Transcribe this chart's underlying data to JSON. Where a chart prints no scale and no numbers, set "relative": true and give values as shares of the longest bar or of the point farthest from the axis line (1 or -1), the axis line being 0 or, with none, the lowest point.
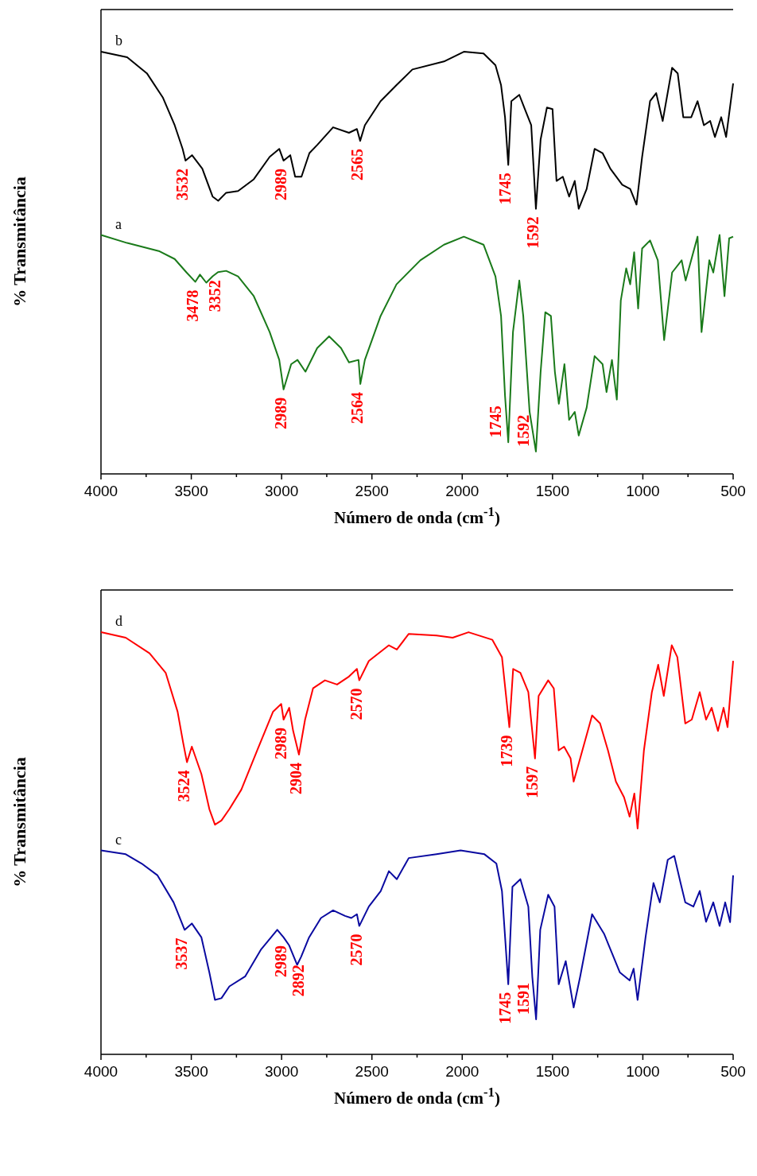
{
  "chart_data": [
    {
      "type": "line",
      "relative": true,
      "xlabel": "Número de onda (cm$^{-1}$)",
      "ylabel": "% Transmitância",
      "xlim": [
        4000,
        500
      ],
      "xticks": [
        4000,
        {
          "value": 3750,
          "label": null
        },
        3500,
        {
          "value": 3250,
          "label": null
        },
        3000,
        {
          "value": 2750,
          "label": null
        },
        2500,
        {
          "value": 2250,
          "label": null
        },
        2000,
        {
          "value": 1750,
          "label": null
        },
        1500,
        {
          "value": 1250,
          "label": null
        },
        1000,
        {
          "value": 750,
          "label": null
        },
        500
      ],
      "grid": false,
      "series": [
        {
          "name": "b",
          "color": "#000000",
          "x": [
            4000,
            3855,
            3746,
            3658,
            3592,
            3548,
            3532,
            3496,
            3439,
            3382,
            3351,
            3307,
            3241,
            3154,
            3066,
            3013,
            2989,
            2952,
            2925,
            2890,
            2846,
            2803,
            2715,
            2627,
            2583,
            2565,
            2539,
            2452,
            2364,
            2276,
            2101,
            1991,
            1882,
            1816,
            1785,
            1763,
            1745,
            1728,
            1684,
            1653,
            1618,
            1592,
            1566,
            1531,
            1500,
            1478,
            1443,
            1408,
            1377,
            1355,
            1311,
            1267,
            1223,
            1180,
            1114,
            1070,
            1035,
            1004,
            960,
            926,
            890,
            838,
            807,
            776,
            732,
            697,
            662,
            627,
            601,
            566,
            539,
            500
          ],
          "values": [
            1.0,
            0.987,
            0.949,
            0.892,
            0.826,
            0.77,
            0.742,
            0.755,
            0.723,
            0.657,
            0.647,
            0.666,
            0.67,
            0.698,
            0.751,
            0.77,
            0.742,
            0.755,
            0.704,
            0.704,
            0.76,
            0.779,
            0.821,
            0.808,
            0.817,
            0.789,
            0.826,
            0.883,
            0.921,
            0.958,
            0.977,
            1.0,
            0.996,
            0.968,
            0.921,
            0.845,
            0.732,
            0.883,
            0.898,
            0.864,
            0.826,
            0.628,
            0.792,
            0.868,
            0.864,
            0.694,
            0.704,
            0.657,
            0.694,
            0.628,
            0.675,
            0.77,
            0.76,
            0.723,
            0.685,
            0.675,
            0.638,
            0.751,
            0.883,
            0.902,
            0.836,
            0.962,
            0.949,
            0.845,
            0.845,
            0.883,
            0.826,
            0.836,
            0.798,
            0.845,
            0.798,
            0.925
          ]
        },
        {
          "name": "a",
          "color": "#1a7a1a",
          "x": [
            4000,
            3855,
            3680,
            3592,
            3526,
            3478,
            3452,
            3417,
            3382,
            3352,
            3307,
            3241,
            3154,
            3066,
            3013,
            2989,
            2947,
            2912,
            2868,
            2803,
            2737,
            2671,
            2627,
            2574,
            2564,
            2539,
            2452,
            2364,
            2232,
            2101,
            1991,
            1882,
            1816,
            1785,
            1763,
            1745,
            1719,
            1684,
            1662,
            1627,
            1592,
            1566,
            1540,
            1509,
            1487,
            1465,
            1434,
            1408,
            1377,
            1355,
            1311,
            1267,
            1223,
            1201,
            1171,
            1144,
            1122,
            1092,
            1070,
            1048,
            1026,
            1004,
            960,
            917,
            882,
            838,
            785,
            763,
            697,
            675,
            632,
            610,
            575,
            548,
            522,
            500
          ],
          "values": [
            0.566,
            0.547,
            0.528,
            0.509,
            0.477,
            0.455,
            0.472,
            0.453,
            0.468,
            0.478,
            0.481,
            0.468,
            0.421,
            0.336,
            0.27,
            0.2,
            0.26,
            0.27,
            0.242,
            0.298,
            0.326,
            0.298,
            0.264,
            0.27,
            0.213,
            0.27,
            0.374,
            0.449,
            0.506,
            0.543,
            0.562,
            0.543,
            0.468,
            0.374,
            0.185,
            0.075,
            0.336,
            0.458,
            0.374,
            0.147,
            0.053,
            0.241,
            0.383,
            0.374,
            0.242,
            0.166,
            0.26,
            0.128,
            0.147,
            0.091,
            0.157,
            0.279,
            0.26,
            0.194,
            0.27,
            0.176,
            0.411,
            0.487,
            0.449,
            0.525,
            0.392,
            0.534,
            0.553,
            0.506,
            0.317,
            0.477,
            0.506,
            0.458,
            0.562,
            0.336,
            0.506,
            0.477,
            0.566,
            0.421,
            0.558,
            0.562
          ]
        }
      ],
      "annotations": [
        {
          "text": "3532",
          "x": 3532,
          "y": 0.742
        },
        {
          "text": "2989",
          "x": 2989,
          "y": 0.742
        },
        {
          "text": "2565",
          "x": 2565,
          "y": 0.789
        },
        {
          "text": "1745",
          "x": 1745,
          "y": 0.732
        },
        {
          "text": "1592",
          "x": 1592,
          "y": 0.628
        },
        {
          "text": "3478",
          "x": 3478,
          "y": 0.455
        },
        {
          "text": "3352",
          "x": 3352,
          "y": 0.478
        },
        {
          "text": "1592",
          "x": 1592,
          "y": 0.053
        },
        {
          "text": "2989",
          "x": 2989,
          "y": 0.2
        },
        {
          "text": "2564",
          "x": 2564,
          "y": 0.213
        },
        {
          "text": "1745",
          "x": 1745,
          "y": 0.075
        }
      ]
    },
    {
      "type": "line",
      "relative": true,
      "xlabel": "Número de onda (cm$^{-1}$)",
      "ylabel": "% Transmitância",
      "xlim": [
        4000,
        500
      ],
      "xticks": [
        4000,
        {
          "value": 3750,
          "label": null
        },
        3500,
        {
          "value": 3250,
          "label": null
        },
        3000,
        {
          "value": 2750,
          "label": null
        },
        2500,
        {
          "value": 2250,
          "label": null
        },
        2000,
        {
          "value": 1750,
          "label": null
        },
        1500,
        {
          "value": 1250,
          "label": null
        },
        1000,
        {
          "value": 750,
          "label": null
        },
        500
      ],
      "grid": false,
      "series": [
        {
          "name": "d",
          "color": "#ff0000",
          "x": [
            4000,
            3863,
            3731,
            3642,
            3576,
            3545,
            3524,
            3497,
            3444,
            3400,
            3369,
            3333,
            3289,
            3223,
            3135,
            3047,
            3002,
            2989,
            2958,
            2936,
            2904,
            2870,
            2826,
            2760,
            2693,
            2627,
            2583,
            2570,
            2517,
            2406,
            2362,
            2296,
            2142,
            2053,
            1965,
            1833,
            1780,
            1739,
            1718,
            1678,
            1634,
            1597,
            1577,
            1524,
            1493,
            1466,
            1436,
            1400,
            1383,
            1347,
            1281,
            1237,
            1193,
            1149,
            1104,
            1073,
            1047,
            1029,
            994,
            950,
            915,
            884,
            840,
            809,
            765,
            729,
            685,
            650,
            619,
            584,
            553,
            531,
            500
          ],
          "values": [
            1.0,
            0.987,
            0.95,
            0.904,
            0.812,
            0.738,
            0.692,
            0.729,
            0.664,
            0.581,
            0.544,
            0.554,
            0.581,
            0.627,
            0.72,
            0.812,
            0.83,
            0.793,
            0.821,
            0.766,
            0.71,
            0.793,
            0.867,
            0.886,
            0.876,
            0.895,
            0.913,
            0.886,
            0.932,
            0.969,
            0.959,
            0.996,
            0.992,
            0.987,
            1.0,
            0.982,
            0.941,
            0.775,
            0.913,
            0.904,
            0.858,
            0.701,
            0.849,
            0.886,
            0.867,
            0.72,
            0.729,
            0.701,
            0.646,
            0.701,
            0.803,
            0.784,
            0.72,
            0.646,
            0.609,
            0.563,
            0.618,
            0.535,
            0.72,
            0.858,
            0.923,
            0.849,
            0.969,
            0.941,
            0.784,
            0.793,
            0.858,
            0.793,
            0.821,
            0.766,
            0.821,
            0.775,
            0.932
          ]
        },
        {
          "name": "c",
          "color": "#0a0aa0",
          "x": [
            4000,
            3863,
            3775,
            3687,
            3598,
            3537,
            3497,
            3444,
            3400,
            3369,
            3333,
            3289,
            3201,
            3113,
            3024,
            2989,
            2958,
            2914,
            2892,
            2848,
            2782,
            2715,
            2649,
            2614,
            2583,
            2570,
            2517,
            2451,
            2406,
            2362,
            2296,
            2142,
            2009,
            1877,
            1811,
            1780,
            1745,
            1722,
            1678,
            1634,
            1612,
            1591,
            1568,
            1524,
            1489,
            1466,
            1427,
            1383,
            1347,
            1281,
            1215,
            1171,
            1127,
            1073,
            1051,
            1029,
            985,
            941,
            906,
            862,
            826,
            791,
            765,
            720,
            685,
            650,
            610,
            575,
            544,
            517,
            500
          ],
          "values": [
            0.483,
            0.474,
            0.452,
            0.424,
            0.36,
            0.295,
            0.31,
            0.277,
            0.194,
            0.129,
            0.133,
            0.161,
            0.185,
            0.249,
            0.295,
            0.277,
            0.258,
            0.212,
            0.231,
            0.277,
            0.323,
            0.341,
            0.328,
            0.323,
            0.332,
            0.304,
            0.35,
            0.387,
            0.434,
            0.415,
            0.465,
            0.474,
            0.483,
            0.474,
            0.452,
            0.387,
            0.166,
            0.397,
            0.415,
            0.35,
            0.184,
            0.083,
            0.295,
            0.378,
            0.35,
            0.166,
            0.221,
            0.111,
            0.184,
            0.332,
            0.286,
            0.24,
            0.194,
            0.175,
            0.203,
            0.129,
            0.277,
            0.406,
            0.36,
            0.461,
            0.47,
            0.406,
            0.36,
            0.35,
            0.387,
            0.314,
            0.36,
            0.304,
            0.36,
            0.313,
            0.424
          ]
        }
      ],
      "annotations": [
        {
          "text": "3524",
          "x": 3524,
          "y": 0.692
        },
        {
          "text": "2989",
          "x": 2989,
          "y": 0.793
        },
        {
          "text": "2904",
          "x": 2904,
          "y": 0.71
        },
        {
          "text": "2570",
          "x": 2570,
          "y": 0.886
        },
        {
          "text": "1739",
          "x": 1739,
          "y": 0.775
        },
        {
          "text": "1597",
          "x": 1597,
          "y": 0.701
        },
        {
          "text": "3537",
          "x": 3537,
          "y": 0.295
        },
        {
          "text": "2989",
          "x": 2989,
          "y": 0.277
        },
        {
          "text": "2892",
          "x": 2892,
          "y": 0.231
        },
        {
          "text": "2570",
          "x": 2570,
          "y": 0.304
        },
        {
          "text": "1745",
          "x": 1745,
          "y": 0.166
        },
        {
          "text": "1591",
          "x": 1591,
          "y": 0.083
        }
      ]
    }
  ]
}
